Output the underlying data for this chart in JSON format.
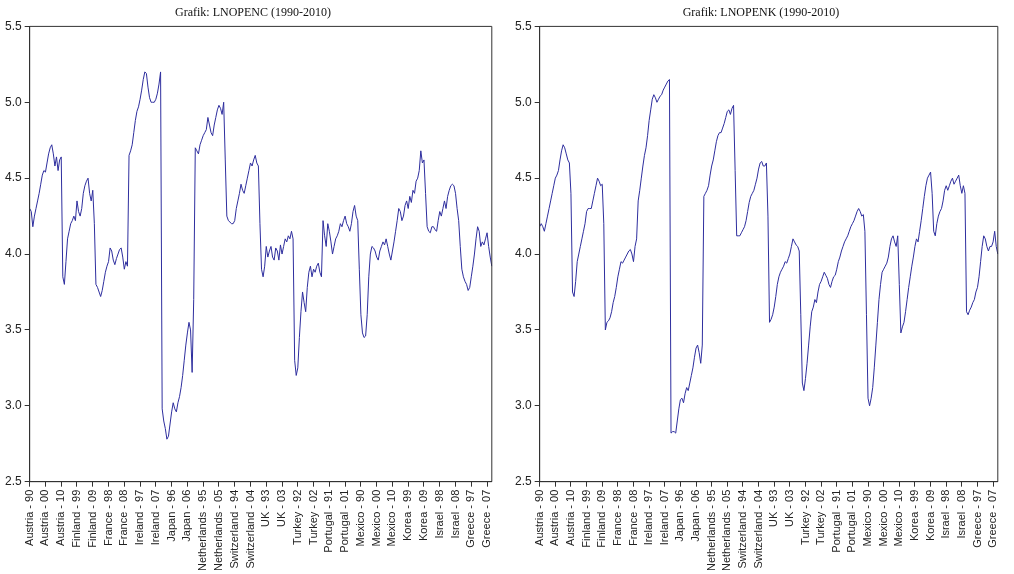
{
  "chart_data": [
    {
      "type": "line",
      "title": "Grafik: LNOPENC (1990-2010)",
      "color": "#2e2e9e",
      "legend": false,
      "grid": false,
      "marker": "none",
      "ylim": [
        2.5,
        5.5
      ],
      "yticks": [
        {
          "value": 2.5,
          "label": "2.5"
        },
        {
          "value": 3,
          "label": "3.0"
        },
        {
          "value": 3.5,
          "label": "3.5"
        },
        {
          "value": 4,
          "label": "4.0"
        },
        {
          "value": 4.5,
          "label": "4.5"
        },
        {
          "value": 5,
          "label": "5.0"
        },
        {
          "value": 5.5,
          "label": "5.5"
        }
      ],
      "categories": [
        "Austria - 90",
        null,
        null,
        null,
        null,
        null,
        null,
        null,
        null,
        null,
        "Austria - 00",
        null,
        null,
        null,
        null,
        null,
        null,
        null,
        null,
        null,
        "Austria - 10",
        null,
        null,
        null,
        null,
        null,
        null,
        null,
        null,
        null,
        "Finland - 99",
        null,
        null,
        null,
        null,
        null,
        null,
        null,
        null,
        null,
        "Finland - 09",
        null,
        null,
        null,
        null,
        null,
        null,
        null,
        null,
        null,
        "France - 98",
        null,
        null,
        null,
        null,
        null,
        null,
        null,
        null,
        null,
        "France - 08",
        null,
        null,
        null,
        null,
        null,
        null,
        null,
        null,
        null,
        "Ireland - 97",
        null,
        null,
        null,
        null,
        null,
        null,
        null,
        null,
        null,
        "Ireland - 07",
        null,
        null,
        null,
        null,
        null,
        null,
        null,
        null,
        null,
        "Japan - 96",
        null,
        null,
        null,
        null,
        null,
        null,
        null,
        null,
        null,
        "Japan - 06",
        null,
        null,
        null,
        null,
        null,
        null,
        null,
        null,
        null,
        "Netherlands - 95",
        null,
        null,
        null,
        null,
        null,
        null,
        null,
        null,
        null,
        "Netherlands - 05",
        null,
        null,
        null,
        null,
        null,
        null,
        null,
        null,
        null,
        "Switzerland - 94",
        null,
        null,
        null,
        null,
        null,
        null,
        null,
        null,
        null,
        "Switzerland - 04",
        null,
        null,
        null,
        null,
        null,
        null,
        null,
        null,
        null,
        "UK - 93",
        null,
        null,
        null,
        null,
        null,
        null,
        null,
        null,
        null,
        "UK - 03",
        null,
        null,
        null,
        null,
        null,
        null,
        null,
        null,
        null,
        "Turkey - 92",
        null,
        null,
        null,
        null,
        null,
        null,
        null,
        null,
        null,
        "Turkey - 02",
        null,
        null,
        null,
        null,
        null,
        null,
        null,
        null,
        null,
        "Portugal - 91",
        null,
        null,
        null,
        null,
        null,
        null,
        null,
        null,
        null,
        "Portugal - 01",
        null,
        null,
        null,
        null,
        null,
        null,
        null,
        null,
        null,
        "Mexico - 90",
        null,
        null,
        null,
        null,
        null,
        null,
        null,
        null,
        null,
        "Mexico - 00",
        null,
        null,
        null,
        null,
        null,
        null,
        null,
        null,
        null,
        "Mexico - 10",
        null,
        null,
        null,
        null,
        null,
        null,
        null,
        null,
        null,
        "Korea - 99",
        null,
        null,
        null,
        null,
        null,
        null,
        null,
        null,
        null,
        "Korea - 09",
        null,
        null,
        null,
        null,
        null,
        null,
        null,
        null,
        null,
        "Israel - 98",
        null,
        null,
        null,
        null,
        null,
        null,
        null,
        null,
        null,
        "Israel - 08",
        null,
        null,
        null,
        null,
        null,
        null,
        null,
        null,
        null,
        "Greece - 97",
        null,
        null,
        null,
        null,
        null,
        null,
        null,
        null,
        null,
        "Greece - 07",
        null,
        null,
        null
      ],
      "values": [
        4.3,
        4.28,
        4.18,
        4.25,
        4.3,
        4.35,
        4.4,
        4.46,
        4.52,
        4.55,
        4.54,
        4.6,
        4.66,
        4.7,
        4.72,
        4.66,
        4.58,
        4.64,
        4.55,
        4.62,
        4.64,
        3.85,
        3.8,
        3.95,
        4.1,
        4.15,
        4.2,
        4.22,
        4.25,
        4.22,
        4.35,
        4.28,
        4.25,
        4.3,
        4.4,
        4.45,
        4.48,
        4.5,
        4.4,
        4.35,
        4.42,
        4.2,
        3.8,
        3.78,
        3.75,
        3.72,
        3.76,
        3.82,
        3.88,
        3.92,
        3.95,
        4.04,
        4.02,
        3.96,
        3.93,
        3.97,
        4.0,
        4.03,
        4.04,
        3.98,
        3.9,
        3.95,
        3.92,
        4.65,
        4.68,
        4.72,
        4.8,
        4.88,
        4.94,
        4.97,
        5.02,
        5.08,
        5.15,
        5.2,
        5.19,
        5.1,
        5.03,
        5.0,
        5.0,
        5.0,
        5.02,
        5.06,
        5.12,
        5.2,
        2.98,
        2.9,
        2.85,
        2.78,
        2.8,
        2.88,
        2.96,
        3.02,
        2.98,
        2.96,
        3.02,
        3.06,
        3.12,
        3.2,
        3.3,
        3.4,
        3.48,
        3.55,
        3.5,
        3.22,
        3.7,
        4.7,
        4.68,
        4.66,
        4.72,
        4.75,
        4.78,
        4.8,
        4.82,
        4.9,
        4.85,
        4.8,
        4.78,
        4.85,
        4.9,
        4.95,
        4.98,
        4.96,
        4.92,
        5.0,
        4.62,
        4.25,
        4.22,
        4.21,
        4.2,
        4.2,
        4.22,
        4.3,
        4.35,
        4.4,
        4.46,
        4.42,
        4.4,
        4.45,
        4.5,
        4.55,
        4.6,
        4.58,
        4.62,
        4.65,
        4.6,
        4.58,
        4.2,
        3.9,
        3.85,
        3.92,
        4.05,
        3.98,
        4.02,
        4.05,
        3.98,
        3.96,
        4.04,
        4.02,
        3.96,
        4.06,
        4.0,
        4.05,
        4.1,
        4.08,
        4.12,
        4.1,
        4.15,
        4.1,
        3.3,
        3.2,
        3.25,
        3.45,
        3.62,
        3.75,
        3.68,
        3.62,
        3.78,
        3.88,
        3.92,
        3.85,
        3.9,
        3.88,
        3.92,
        3.94,
        3.88,
        3.85,
        4.22,
        4.12,
        4.05,
        4.2,
        4.15,
        4.08,
        4.0,
        4.05,
        4.1,
        4.12,
        4.15,
        4.2,
        4.18,
        4.22,
        4.25,
        4.2,
        4.18,
        4.15,
        4.2,
        4.28,
        4.32,
        4.25,
        4.22,
        3.9,
        3.6,
        3.48,
        3.45,
        3.46,
        3.6,
        3.85,
        4.0,
        4.05,
        4.04,
        4.02,
        3.98,
        3.96,
        4.02,
        4.05,
        4.08,
        4.06,
        4.1,
        4.05,
        4.0,
        3.96,
        4.02,
        4.08,
        4.15,
        4.22,
        4.3,
        4.28,
        4.22,
        4.25,
        4.32,
        4.35,
        4.3,
        4.38,
        4.34,
        4.42,
        4.4,
        4.48,
        4.5,
        4.55,
        4.68,
        4.6,
        4.62,
        4.4,
        4.18,
        4.15,
        4.14,
        4.18,
        4.18,
        4.16,
        4.15,
        4.22,
        4.28,
        4.25,
        4.3,
        4.35,
        4.3,
        4.38,
        4.42,
        4.45,
        4.46,
        4.45,
        4.4,
        4.3,
        4.22,
        4.05,
        3.9,
        3.85,
        3.82,
        3.8,
        3.76,
        3.78,
        3.85,
        3.92,
        4.0,
        4.1,
        4.18,
        4.15,
        4.05,
        4.08,
        4.06,
        4.1,
        4.14,
        4.05,
        3.98,
        3.92
      ]
    },
    {
      "type": "line",
      "title": "Grafik: LNOPENK (1990-2010)",
      "color": "#2e2e9e",
      "legend": false,
      "grid": false,
      "marker": "none",
      "ylim": [
        2.5,
        5.5
      ],
      "yticks": [
        {
          "value": 2.5,
          "label": "2.5"
        },
        {
          "value": 3,
          "label": "3.0"
        },
        {
          "value": 3.5,
          "label": "3.5"
        },
        {
          "value": 4,
          "label": "4.0"
        },
        {
          "value": 4.5,
          "label": "4.5"
        },
        {
          "value": 5,
          "label": "5.0"
        },
        {
          "value": 5.5,
          "label": "5.5"
        }
      ],
      "categories": [
        "Austria - 90",
        null,
        null,
        null,
        null,
        null,
        null,
        null,
        null,
        null,
        "Austria - 00",
        null,
        null,
        null,
        null,
        null,
        null,
        null,
        null,
        null,
        "Austria - 10",
        null,
        null,
        null,
        null,
        null,
        null,
        null,
        null,
        null,
        "Finland - 99",
        null,
        null,
        null,
        null,
        null,
        null,
        null,
        null,
        null,
        "Finland - 09",
        null,
        null,
        null,
        null,
        null,
        null,
        null,
        null,
        null,
        "France - 98",
        null,
        null,
        null,
        null,
        null,
        null,
        null,
        null,
        null,
        "France - 08",
        null,
        null,
        null,
        null,
        null,
        null,
        null,
        null,
        null,
        "Ireland - 97",
        null,
        null,
        null,
        null,
        null,
        null,
        null,
        null,
        null,
        "Ireland - 07",
        null,
        null,
        null,
        null,
        null,
        null,
        null,
        null,
        null,
        "Japan - 96",
        null,
        null,
        null,
        null,
        null,
        null,
        null,
        null,
        null,
        "Japan - 06",
        null,
        null,
        null,
        null,
        null,
        null,
        null,
        null,
        null,
        "Netherlands - 95",
        null,
        null,
        null,
        null,
        null,
        null,
        null,
        null,
        null,
        "Netherlands - 05",
        null,
        null,
        null,
        null,
        null,
        null,
        null,
        null,
        null,
        "Switzerland - 94",
        null,
        null,
        null,
        null,
        null,
        null,
        null,
        null,
        null,
        "Switzerland - 04",
        null,
        null,
        null,
        null,
        null,
        null,
        null,
        null,
        null,
        "UK - 93",
        null,
        null,
        null,
        null,
        null,
        null,
        null,
        null,
        null,
        "UK - 03",
        null,
        null,
        null,
        null,
        null,
        null,
        null,
        null,
        null,
        "Turkey - 92",
        null,
        null,
        null,
        null,
        null,
        null,
        null,
        null,
        null,
        "Turkey - 02",
        null,
        null,
        null,
        null,
        null,
        null,
        null,
        null,
        null,
        "Portugal - 91",
        null,
        null,
        null,
        null,
        null,
        null,
        null,
        null,
        null,
        "Portugal - 01",
        null,
        null,
        null,
        null,
        null,
        null,
        null,
        null,
        null,
        "Mexico - 90",
        null,
        null,
        null,
        null,
        null,
        null,
        null,
        null,
        null,
        "Mexico - 00",
        null,
        null,
        null,
        null,
        null,
        null,
        null,
        null,
        null,
        "Mexico - 10",
        null,
        null,
        null,
        null,
        null,
        null,
        null,
        null,
        null,
        "Korea - 99",
        null,
        null,
        null,
        null,
        null,
        null,
        null,
        null,
        null,
        "Korea - 09",
        null,
        null,
        null,
        null,
        null,
        null,
        null,
        null,
        null,
        "Israel - 98",
        null,
        null,
        null,
        null,
        null,
        null,
        null,
        null,
        null,
        "Israel - 08",
        null,
        null,
        null,
        null,
        null,
        null,
        null,
        null,
        null,
        "Greece - 97",
        null,
        null,
        null,
        null,
        null,
        null,
        null,
        null,
        null,
        "Greece - 07",
        null,
        null,
        null
      ],
      "values": [
        4.18,
        4.2,
        4.18,
        4.15,
        4.2,
        4.25,
        4.3,
        4.35,
        4.4,
        4.45,
        4.5,
        4.52,
        4.55,
        4.62,
        4.68,
        4.72,
        4.7,
        4.66,
        4.62,
        4.6,
        4.4,
        3.75,
        3.72,
        3.82,
        3.95,
        4.0,
        4.05,
        4.1,
        4.15,
        4.2,
        4.28,
        4.3,
        4.3,
        4.3,
        4.35,
        4.4,
        4.45,
        4.5,
        4.48,
        4.45,
        4.46,
        4.2,
        3.5,
        3.55,
        3.56,
        3.58,
        3.62,
        3.68,
        3.72,
        3.78,
        3.85,
        3.9,
        3.95,
        3.94,
        3.96,
        3.98,
        4.0,
        4.02,
        4.03,
        4.0,
        3.95,
        4.05,
        4.1,
        4.35,
        4.42,
        4.5,
        4.58,
        4.65,
        4.7,
        4.78,
        4.88,
        4.95,
        5.02,
        5.05,
        5.03,
        5.0,
        5.02,
        5.04,
        5.05,
        5.08,
        5.1,
        5.12,
        5.14,
        5.15,
        2.82,
        2.83,
        2.83,
        2.82,
        2.9,
        2.98,
        3.04,
        3.05,
        3.02,
        3.08,
        3.12,
        3.1,
        3.15,
        3.2,
        3.25,
        3.32,
        3.38,
        3.4,
        3.35,
        3.28,
        3.4,
        4.38,
        4.4,
        4.42,
        4.45,
        4.52,
        4.58,
        4.62,
        4.68,
        4.74,
        4.78,
        4.8,
        4.8,
        4.83,
        4.86,
        4.9,
        4.94,
        4.95,
        4.92,
        4.96,
        4.98,
        4.55,
        4.12,
        4.12,
        4.12,
        4.14,
        4.16,
        4.18,
        4.22,
        4.28,
        4.34,
        4.38,
        4.4,
        4.42,
        4.46,
        4.5,
        4.56,
        4.6,
        4.61,
        4.58,
        4.58,
        4.6,
        4.25,
        3.55,
        3.57,
        3.6,
        3.65,
        3.72,
        3.8,
        3.85,
        3.88,
        3.9,
        3.92,
        3.95,
        3.94,
        3.97,
        4.0,
        4.05,
        4.1,
        4.08,
        4.06,
        4.05,
        4.02,
        3.6,
        3.15,
        3.1,
        3.18,
        3.28,
        3.4,
        3.52,
        3.62,
        3.65,
        3.7,
        3.68,
        3.75,
        3.8,
        3.82,
        3.85,
        3.88,
        3.86,
        3.84,
        3.8,
        3.78,
        3.82,
        3.85,
        3.86,
        3.9,
        3.95,
        3.98,
        4.02,
        4.05,
        4.08,
        4.1,
        4.12,
        4.15,
        4.18,
        4.2,
        4.22,
        4.25,
        4.28,
        4.3,
        4.28,
        4.25,
        4.26,
        4.15,
        3.6,
        3.05,
        3.0,
        3.05,
        3.12,
        3.25,
        3.4,
        3.55,
        3.7,
        3.8,
        3.88,
        3.9,
        3.92,
        3.94,
        3.98,
        4.05,
        4.1,
        4.12,
        4.08,
        4.05,
        4.12,
        3.8,
        3.48,
        3.52,
        3.55,
        3.62,
        3.7,
        3.78,
        3.85,
        3.92,
        3.98,
        4.05,
        4.1,
        4.08,
        4.15,
        4.22,
        4.3,
        4.38,
        4.45,
        4.5,
        4.52,
        4.54,
        4.4,
        4.15,
        4.12,
        4.2,
        4.25,
        4.28,
        4.3,
        4.35,
        4.42,
        4.45,
        4.42,
        4.45,
        4.48,
        4.5,
        4.46,
        4.48,
        4.5,
        4.52,
        4.45,
        4.4,
        4.45,
        4.4,
        3.62,
        3.6,
        3.63,
        3.65,
        3.68,
        3.7,
        3.75,
        3.78,
        3.85,
        3.95,
        4.05,
        4.12,
        4.1,
        4.05,
        4.02,
        4.05,
        4.05,
        4.08,
        4.15,
        4.05,
        4.0
      ]
    }
  ]
}
